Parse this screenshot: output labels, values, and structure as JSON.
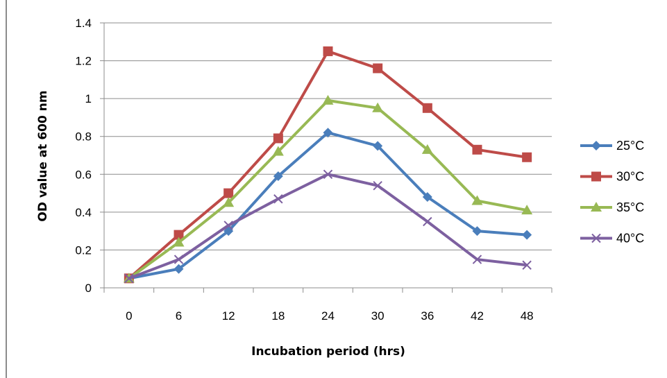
{
  "chart_data": {
    "type": "line",
    "xlabel": "Incubation period (hrs)",
    "ylabel": "OD value at 600 nm",
    "categories": [
      "0",
      "6",
      "12",
      "18",
      "24",
      "30",
      "36",
      "42",
      "48"
    ],
    "ylim": [
      0,
      1.4
    ],
    "yticks": [
      "0",
      "0.2",
      "0.4",
      "0.6",
      "0.8",
      "1",
      "1.2",
      "1.4"
    ],
    "grid": true,
    "legend_position": "right",
    "series": [
      {
        "name": "25°C",
        "color": "#4a7ebb",
        "marker": "diamond",
        "values": [
          0.05,
          0.1,
          0.3,
          0.59,
          0.82,
          0.75,
          0.48,
          0.3,
          0.28
        ]
      },
      {
        "name": "30°C",
        "color": "#be4b48",
        "marker": "square",
        "values": [
          0.05,
          0.28,
          0.5,
          0.79,
          1.25,
          1.16,
          0.95,
          0.73,
          0.69
        ]
      },
      {
        "name": "35°C",
        "color": "#98b954",
        "marker": "triangle",
        "values": [
          0.05,
          0.24,
          0.45,
          0.72,
          0.99,
          0.95,
          0.73,
          0.46,
          0.41
        ]
      },
      {
        "name": "40°C",
        "color": "#7d60a0",
        "marker": "x",
        "values": [
          0.05,
          0.15,
          0.33,
          0.47,
          0.6,
          0.54,
          0.35,
          0.15,
          0.12
        ]
      }
    ]
  }
}
